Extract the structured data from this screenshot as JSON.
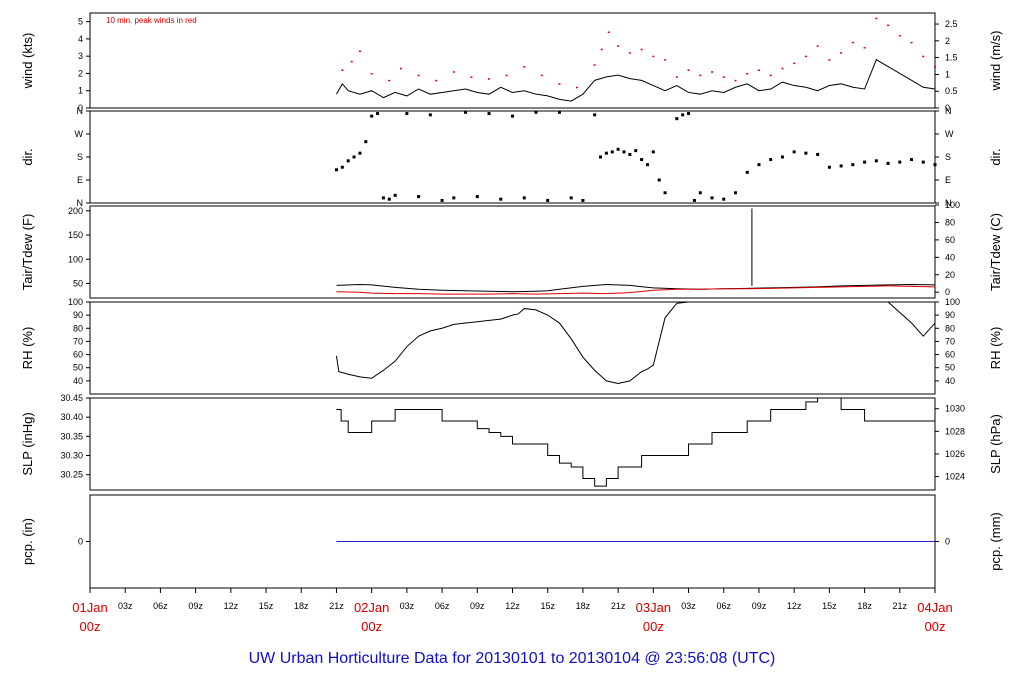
{
  "footer_title": "UW Urban Horticulture Data for 20130101  to  20130104 @ 23:56:08  (UTC)",
  "x_axis": {
    "ticks": [
      "01Jan",
      "03z",
      "06z",
      "09z",
      "12z",
      "15z",
      "18z",
      "21z",
      "02Jan",
      "03z",
      "06z",
      "09z",
      "12z",
      "15z",
      "18z",
      "21z",
      "03Jan",
      "03z",
      "06z",
      "09z",
      "12z",
      "15z",
      "18z",
      "21z",
      "04Jan"
    ],
    "day_sub": "00z",
    "day_color": "#d00000"
  },
  "colors": {
    "main": "#000000",
    "peak": "#dd0000",
    "dew": "#dd0000",
    "pcp": "#2222cc"
  },
  "chart_data": [
    {
      "id": "wind",
      "type": "line",
      "ylabel": "wind (kts)",
      "ylabel_right": "wind (m/s)",
      "ylim": [
        0,
        5.5
      ],
      "yticks": [
        0,
        1,
        2,
        3,
        4,
        5
      ],
      "yticks_right": [
        "0",
        "0.5",
        "1",
        "1.5",
        "2",
        "2.5"
      ],
      "yticks_right_pos": [
        0,
        0.97,
        1.94,
        2.92,
        3.89,
        4.86
      ],
      "annotation": "10 min. peak winds in red",
      "series": [
        {
          "name": "wind",
          "x": [
            21,
            21.5,
            22,
            23,
            24,
            25,
            26,
            27,
            28,
            29,
            30,
            31,
            32,
            33,
            34,
            35,
            36,
            37,
            38,
            39,
            40,
            41,
            42,
            43,
            44,
            45,
            46,
            47,
            48,
            49,
            50,
            51,
            52,
            53,
            54,
            55,
            56,
            57,
            58,
            59,
            60,
            61,
            62,
            63,
            64,
            65,
            66,
            67,
            68,
            69,
            70,
            71,
            72
          ],
          "y": [
            0.8,
            1.4,
            1.0,
            0.8,
            1.0,
            0.6,
            0.9,
            0.7,
            1.1,
            0.8,
            0.9,
            1.0,
            1.1,
            0.9,
            0.8,
            1.2,
            0.9,
            1.0,
            0.8,
            0.7,
            0.5,
            0.4,
            0.8,
            1.6,
            1.8,
            1.9,
            1.7,
            1.6,
            1.3,
            1.0,
            1.3,
            0.9,
            0.8,
            1.0,
            0.9,
            1.2,
            1.4,
            1.0,
            1.1,
            1.5,
            1.3,
            1.2,
            1.0,
            1.3,
            1.4,
            1.2,
            1.1,
            2.8,
            2.4,
            2.0,
            1.6,
            1.2,
            1.1
          ]
        },
        {
          "name": "10 min. peak winds",
          "x": [
            21.5,
            22.3,
            23,
            24,
            25.5,
            26.5,
            28,
            29.5,
            31,
            32.5,
            34,
            35.5,
            37,
            38.5,
            40,
            41.5,
            43,
            43.6,
            44.2,
            45,
            46,
            47,
            48,
            49,
            50,
            51,
            52,
            53,
            54,
            55,
            56,
            57,
            58,
            59,
            60,
            61,
            62,
            63,
            64,
            65,
            66,
            67,
            68,
            69,
            70,
            71,
            72
          ],
          "y": [
            2.2,
            2.7,
            3.3,
            2.0,
            1.6,
            2.3,
            1.9,
            1.6,
            2.1,
            1.8,
            1.7,
            1.9,
            2.4,
            1.9,
            1.4,
            1.2,
            2.5,
            3.4,
            4.4,
            3.6,
            3.2,
            3.4,
            3.0,
            2.8,
            1.8,
            2.2,
            1.9,
            2.1,
            1.8,
            1.6,
            2.0,
            2.2,
            1.9,
            2.3,
            2.6,
            3.0,
            3.6,
            2.8,
            3.2,
            3.8,
            3.5,
            5.2,
            4.8,
            4.2,
            3.8,
            3.0,
            2.4
          ]
        }
      ]
    },
    {
      "id": "dir",
      "type": "scatter",
      "ylabel": "dir.",
      "ylabel_right": "dir.",
      "ylim": [
        0,
        360
      ],
      "yticks": [
        0,
        90,
        180,
        270,
        360
      ],
      "ytick_labels": [
        "N",
        "E",
        "S",
        "W",
        "N"
      ],
      "series": [
        {
          "name": "direction",
          "x": [
            21,
            21.5,
            22,
            22.5,
            23,
            23.5,
            24,
            24.5,
            25,
            25.5,
            26,
            27,
            28,
            29,
            30,
            31,
            32,
            33,
            34,
            35,
            36,
            37,
            38,
            39,
            40,
            41,
            42,
            43,
            43.5,
            44,
            44.5,
            45,
            45.5,
            46,
            46.5,
            47,
            47.5,
            48,
            48.5,
            49,
            50,
            50.5,
            51,
            51.5,
            52,
            53,
            54,
            55,
            56,
            57,
            58,
            59,
            60,
            61,
            62,
            63,
            64,
            65,
            66,
            67,
            68,
            69,
            70,
            71,
            72
          ],
          "y": [
            130,
            140,
            165,
            180,
            195,
            240,
            340,
            350,
            20,
            15,
            30,
            350,
            25,
            345,
            10,
            20,
            355,
            25,
            350,
            15,
            340,
            20,
            355,
            10,
            355,
            20,
            10,
            345,
            180,
            195,
            200,
            210,
            200,
            190,
            205,
            170,
            150,
            200,
            90,
            40,
            330,
            345,
            350,
            10,
            40,
            20,
            15,
            40,
            120,
            150,
            170,
            180,
            200,
            195,
            190,
            140,
            145,
            150,
            160,
            165,
            155,
            160,
            170,
            160,
            150
          ]
        }
      ]
    },
    {
      "id": "temp",
      "type": "line",
      "ylabel": "Tair/Tdew (F)",
      "ylabel_right": "Tair/Tdew (C)",
      "ylim": [
        20,
        210
      ],
      "yticks": [
        50,
        100,
        150,
        200
      ],
      "yticks_right": [
        "0",
        "20",
        "40",
        "60",
        "80",
        "100"
      ],
      "yticks_right_pos": [
        32,
        68,
        104,
        140,
        176,
        212
      ],
      "series": [
        {
          "name": "Tair",
          "x": [
            21,
            23,
            24,
            26,
            28,
            30,
            32,
            34,
            36,
            38,
            39,
            40,
            42,
            44,
            46,
            48,
            50,
            52,
            54,
            56,
            58,
            60,
            62,
            64,
            66,
            68,
            70,
            72
          ],
          "y": [
            46,
            48,
            47,
            42,
            38,
            36,
            35,
            34,
            33,
            34,
            35,
            38,
            44,
            48,
            46,
            41,
            39,
            38,
            39,
            40,
            41,
            42,
            43,
            45,
            46,
            47,
            48,
            47
          ]
        },
        {
          "name": "Tdew",
          "x": [
            21,
            23,
            24,
            26,
            28,
            30,
            32,
            34,
            36,
            38,
            40,
            42,
            44,
            46,
            48,
            50,
            52,
            54,
            56,
            58,
            60,
            62,
            64,
            66,
            68,
            70,
            72
          ],
          "y": [
            33,
            32,
            30,
            29,
            29,
            28,
            28,
            28,
            29,
            28,
            29,
            30,
            29,
            31,
            36,
            38,
            38,
            39,
            39,
            40,
            41,
            42,
            43,
            44,
            45,
            44,
            43
          ]
        }
      ],
      "spike": {
        "x": 56.4,
        "y": 205
      }
    },
    {
      "id": "rh",
      "type": "line",
      "ylabel": "RH (%)",
      "ylabel_right": "RH (%)",
      "ylim": [
        30,
        100
      ],
      "yticks": [
        40,
        50,
        60,
        70,
        80,
        90,
        100
      ],
      "series": [
        {
          "name": "RH",
          "x": [
            21,
            21.2,
            22,
            23,
            24,
            25,
            26,
            27,
            28,
            29,
            30,
            31,
            32,
            33,
            34,
            35,
            36,
            36.5,
            37,
            38,
            39,
            40,
            41,
            42,
            43,
            44,
            45,
            46,
            47,
            47.5,
            48,
            48.5,
            49,
            50,
            51,
            52,
            53,
            54,
            55,
            56,
            57,
            58,
            60,
            62,
            64,
            66,
            67,
            68,
            69,
            70,
            71,
            72
          ],
          "y": [
            59,
            47,
            45,
            43,
            42,
            48,
            55,
            66,
            74,
            78,
            80,
            83,
            84,
            85,
            86,
            87,
            90,
            91,
            95,
            94,
            90,
            84,
            72,
            58,
            48,
            40,
            38,
            40,
            47,
            49,
            52,
            70,
            88,
            99,
            100,
            100,
            100,
            100,
            100,
            100,
            100,
            100,
            100,
            100,
            100,
            100,
            100,
            100,
            92,
            84,
            74,
            84
          ]
        }
      ]
    },
    {
      "id": "slp",
      "type": "line",
      "step": true,
      "ylabel": "SLP (inHg)",
      "ylabel_right": "SLP (hPa)",
      "ylim": [
        30.21,
        30.45
      ],
      "yticks": [
        30.25,
        30.3,
        30.35,
        30.4,
        30.45
      ],
      "ytick_labels": [
        "30.25",
        "30.30",
        "30.35",
        "30.40",
        "30.45"
      ],
      "yticks_right": [
        "1024",
        "1026",
        "1028",
        "1030"
      ],
      "yticks_right_pos": [
        30.245,
        30.304,
        30.363,
        30.422
      ],
      "series": [
        {
          "name": "SLP",
          "x": [
            21,
            21.4,
            22,
            23,
            24,
            25,
            26,
            30,
            32,
            33,
            34,
            35,
            36,
            37,
            38,
            39,
            40,
            41,
            42,
            43,
            43.5,
            44,
            45,
            46,
            47,
            48,
            49,
            50,
            51,
            52,
            53,
            54,
            55,
            56,
            57,
            58,
            59,
            60,
            61,
            62,
            63,
            64,
            65,
            66,
            67,
            68,
            69,
            70,
            71,
            72
          ],
          "y": [
            30.42,
            30.39,
            30.36,
            30.36,
            30.39,
            30.39,
            30.42,
            30.39,
            30.39,
            30.37,
            30.36,
            30.35,
            30.33,
            30.33,
            30.33,
            30.3,
            30.28,
            30.27,
            30.24,
            30.22,
            30.22,
            30.24,
            30.27,
            30.27,
            30.3,
            30.3,
            30.3,
            30.3,
            30.33,
            30.33,
            30.36,
            30.36,
            30.36,
            30.39,
            30.39,
            30.42,
            30.42,
            30.42,
            30.44,
            30.45,
            30.45,
            30.42,
            30.42,
            30.39,
            30.39,
            30.39,
            30.39,
            30.39,
            30.39,
            30.39
          ]
        }
      ]
    },
    {
      "id": "pcp",
      "type": "line",
      "ylabel": "pcp. (in)",
      "ylabel_right": "pcp. (mm)",
      "ylim": [
        -1,
        1
      ],
      "yticks": [
        0
      ],
      "yticks_right": [
        "0"
      ],
      "yticks_right_pos": [
        0
      ],
      "series": [
        {
          "name": "pcp",
          "x": [
            21,
            72
          ],
          "y": [
            0,
            0
          ]
        }
      ]
    }
  ]
}
